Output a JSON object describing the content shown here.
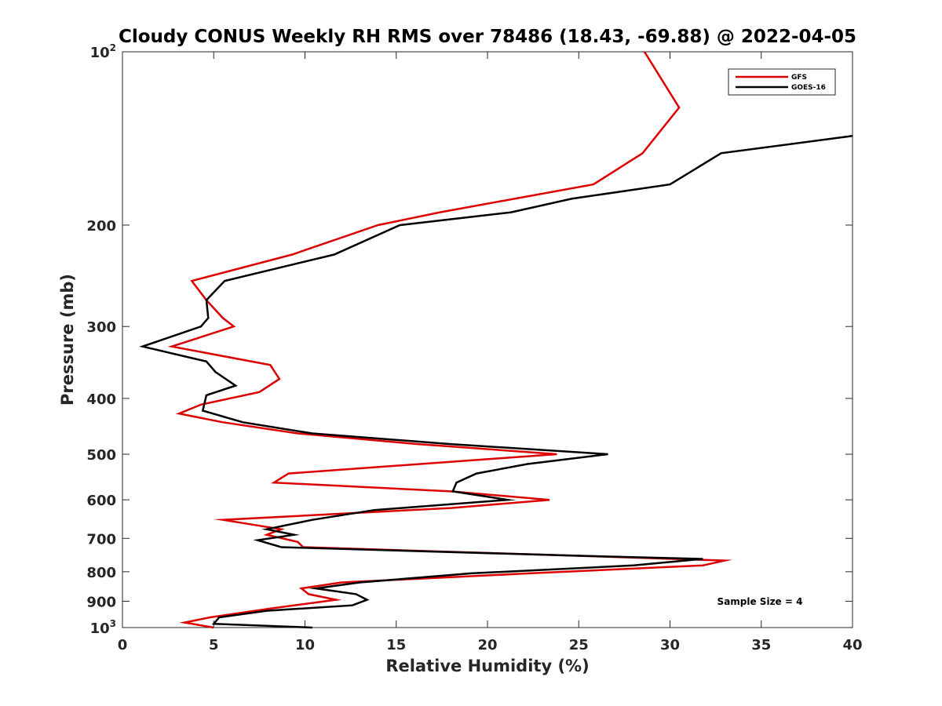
{
  "chart_data": {
    "type": "line",
    "title": "Cloudy CONUS Weekly RH RMS over 78486 (18.43, -69.88) @ 2022-04-05",
    "xlabel": "Relative Humidity (%)",
    "ylabel": "Pressure (mb)",
    "xlim": [
      0,
      40
    ],
    "ylim": [
      100,
      1000
    ],
    "y_scale": "log",
    "y_reversed": true,
    "grid": false,
    "legend_position": "top-right",
    "annotation": "Sample Size = 4",
    "x_ticks": [
      {
        "value": 0,
        "label": "0"
      },
      {
        "value": 5,
        "label": "5"
      },
      {
        "value": 10,
        "label": "10"
      },
      {
        "value": 15,
        "label": "15"
      },
      {
        "value": 20,
        "label": "20"
      },
      {
        "value": 25,
        "label": "25"
      },
      {
        "value": 30,
        "label": "30"
      },
      {
        "value": 35,
        "label": "35"
      },
      {
        "value": 40,
        "label": "40"
      }
    ],
    "y_ticks": [
      {
        "value": 100,
        "label": "10",
        "sup": "2"
      },
      {
        "value": 200,
        "label": "200",
        "sup": ""
      },
      {
        "value": 300,
        "label": "300",
        "sup": ""
      },
      {
        "value": 400,
        "label": "400",
        "sup": ""
      },
      {
        "value": 500,
        "label": "500",
        "sup": ""
      },
      {
        "value": 600,
        "label": "600",
        "sup": ""
      },
      {
        "value": 700,
        "label": "700",
        "sup": ""
      },
      {
        "value": 800,
        "label": "800",
        "sup": ""
      },
      {
        "value": 900,
        "label": "900",
        "sup": ""
      },
      {
        "value": 1000,
        "label": "10",
        "sup": "3"
      }
    ],
    "series": [
      {
        "name": "GFS",
        "color": "#dd0000",
        "points": [
          [
            28.6,
            100
          ],
          [
            30.5,
            125
          ],
          [
            28.5,
            150
          ],
          [
            25.8,
            170
          ],
          [
            17.4,
            190
          ],
          [
            14.0,
            200
          ],
          [
            9.3,
            225
          ],
          [
            3.8,
            250
          ],
          [
            4.6,
            270
          ],
          [
            5.5,
            290
          ],
          [
            6.1,
            300
          ],
          [
            2.7,
            325
          ],
          [
            8.1,
            350
          ],
          [
            8.6,
            370
          ],
          [
            7.5,
            390
          ],
          [
            4.3,
            410
          ],
          [
            3.1,
            425
          ],
          [
            5.5,
            440
          ],
          [
            9.6,
            460
          ],
          [
            16.1,
            480
          ],
          [
            23.8,
            500
          ],
          [
            9.1,
            540
          ],
          [
            8.3,
            560
          ],
          [
            18.0,
            580
          ],
          [
            23.4,
            600
          ],
          [
            18.0,
            620
          ],
          [
            5.5,
            650
          ],
          [
            8.7,
            675
          ],
          [
            7.9,
            690
          ],
          [
            9.6,
            710
          ],
          [
            9.9,
            725
          ],
          [
            24.6,
            750
          ],
          [
            33.0,
            765
          ],
          [
            31.8,
            780
          ],
          [
            22.3,
            805
          ],
          [
            12.0,
            835
          ],
          [
            9.8,
            855
          ],
          [
            10.2,
            875
          ],
          [
            11.7,
            895
          ],
          [
            8.3,
            925
          ],
          [
            4.8,
            960
          ],
          [
            3.4,
            980
          ],
          [
            5.0,
            1000
          ]
        ]
      },
      {
        "name": "GOES-16",
        "color": "#000000",
        "points": [
          [
            40.0,
            140
          ],
          [
            32.8,
            150
          ],
          [
            30.0,
            170
          ],
          [
            24.6,
            180
          ],
          [
            21.3,
            190
          ],
          [
            15.2,
            200
          ],
          [
            11.6,
            225
          ],
          [
            5.6,
            250
          ],
          [
            4.6,
            270
          ],
          [
            4.7,
            290
          ],
          [
            4.3,
            300
          ],
          [
            1.1,
            325
          ],
          [
            4.6,
            345
          ],
          [
            5.1,
            360
          ],
          [
            6.2,
            380
          ],
          [
            4.6,
            395
          ],
          [
            4.4,
            420
          ],
          [
            6.6,
            440
          ],
          [
            10.4,
            460
          ],
          [
            17.9,
            480
          ],
          [
            26.6,
            500
          ],
          [
            22.2,
            520
          ],
          [
            19.4,
            540
          ],
          [
            18.3,
            560
          ],
          [
            18.1,
            580
          ],
          [
            21.1,
            600
          ],
          [
            13.8,
            625
          ],
          [
            10.4,
            650
          ],
          [
            7.9,
            675
          ],
          [
            9.4,
            690
          ],
          [
            7.4,
            705
          ],
          [
            8.7,
            725
          ],
          [
            24.7,
            750
          ],
          [
            31.8,
            760
          ],
          [
            28.0,
            780
          ],
          [
            19.1,
            805
          ],
          [
            13.0,
            835
          ],
          [
            10.6,
            855
          ],
          [
            12.8,
            875
          ],
          [
            13.4,
            895
          ],
          [
            12.6,
            915
          ],
          [
            7.9,
            935
          ],
          [
            5.3,
            960
          ],
          [
            5.0,
            985
          ],
          [
            10.4,
            1000
          ]
        ]
      }
    ]
  }
}
